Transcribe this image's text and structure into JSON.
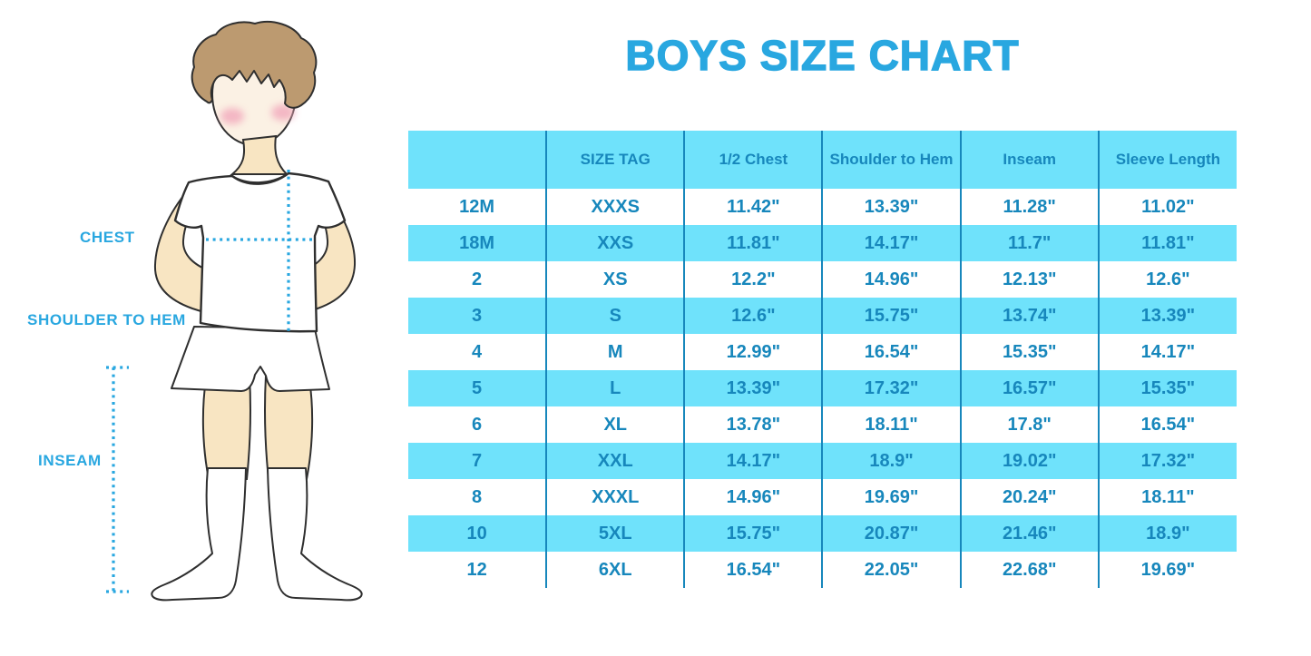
{
  "title": "BOYS SIZE CHART",
  "figure": {
    "name": "boy-measurement-illustration",
    "labels": [
      {
        "text": "CHEST"
      },
      {
        "text": "SHOULDER TO HEM"
      },
      {
        "text": "INSEAM"
      }
    ]
  },
  "colors": {
    "accent": "#29A7E0",
    "table_fill": "#6FE2FB",
    "table_text_and_lines": "#1787BC",
    "background": "#FFFFFF"
  },
  "chart_data": {
    "type": "table",
    "title": "BOYS SIZE CHART",
    "columns": [
      "",
      "SIZE TAG",
      "1/2 Chest",
      "Shoulder to Hem",
      "Inseam",
      "Sleeve Length"
    ],
    "rows": [
      [
        "12M",
        "XXXS",
        "11.42\"",
        "13.39\"",
        "11.28\"",
        "11.02\""
      ],
      [
        "18M",
        "XXS",
        "11.81\"",
        "14.17\"",
        "11.7\"",
        "11.81\""
      ],
      [
        "2",
        "XS",
        "12.2\"",
        "14.96\"",
        "12.13\"",
        "12.6\""
      ],
      [
        "3",
        "S",
        "12.6\"",
        "15.75\"",
        "13.74\"",
        "13.39\""
      ],
      [
        "4",
        "M",
        "12.99\"",
        "16.54\"",
        "15.35\"",
        "14.17\""
      ],
      [
        "5",
        "L",
        "13.39\"",
        "17.32\"",
        "16.57\"",
        "15.35\""
      ],
      [
        "6",
        "XL",
        "13.78\"",
        "18.11\"",
        "17.8\"",
        "16.54\""
      ],
      [
        "7",
        "XXL",
        "14.17\"",
        "18.9\"",
        "19.02\"",
        "17.32\""
      ],
      [
        "8",
        "XXXL",
        "14.96\"",
        "19.69\"",
        "20.24\"",
        "18.11\""
      ],
      [
        "10",
        "5XL",
        "15.75\"",
        "20.87\"",
        "21.46\"",
        "18.9\""
      ],
      [
        "12",
        "6XL",
        "16.54\"",
        "22.05\"",
        "22.68\"",
        "19.69\""
      ]
    ],
    "striped_rows": "white / light-cyan alternating, header light-cyan",
    "grid": "vertical dividers only"
  }
}
